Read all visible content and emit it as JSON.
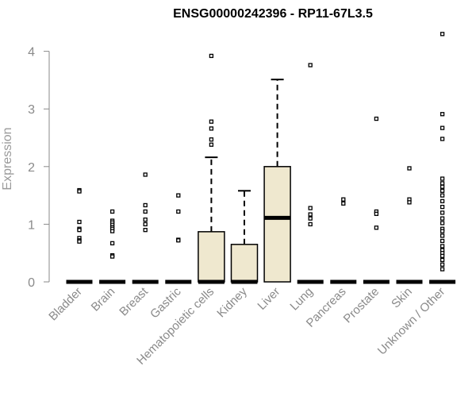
{
  "chart_data": {
    "type": "box",
    "title": "ENSG00000242396 - RP11-67L3.5",
    "xlabel": "",
    "ylabel": "Expression",
    "ylim": [
      0,
      4.3
    ],
    "yticks": [
      0,
      1,
      2,
      3,
      4
    ],
    "grid": false,
    "categories": [
      "Bladder",
      "Brain",
      "Breast",
      "Gastric",
      "Hematopoietic cells",
      "Kidney",
      "Liver",
      "Lung",
      "Pancreas",
      "Prostate",
      "Skin",
      "Unknown / Other"
    ],
    "box_fill": "#efe8cf",
    "boxes": [
      {
        "category": "Bladder",
        "q1": 0,
        "median": 0,
        "q3": 0,
        "whisker_low": 0,
        "whisker_high": 0,
        "outliers": [
          1.59,
          1.57,
          1.04,
          0.92,
          0.9,
          0.76,
          0.72,
          0.7
        ]
      },
      {
        "category": "Brain",
        "q1": 0,
        "median": 0,
        "q3": 0,
        "whisker_low": 0,
        "whisker_high": 0,
        "outliers": [
          1.22,
          1.06,
          1.03,
          0.99,
          0.95,
          0.92,
          0.88,
          0.67,
          0.46,
          0.44
        ]
      },
      {
        "category": "Breast",
        "q1": 0,
        "median": 0,
        "q3": 0,
        "whisker_low": 0,
        "whisker_high": 0,
        "outliers": [
          1.86,
          1.33,
          1.22,
          1.08,
          1.0,
          0.9
        ]
      },
      {
        "category": "Gastric",
        "q1": 0,
        "median": 0,
        "q3": 0,
        "whisker_low": 0,
        "whisker_high": 0,
        "outliers": [
          1.5,
          1.22,
          0.73,
          0.72
        ]
      },
      {
        "category": "Hematopoietic cells",
        "q1": 0,
        "median": 0,
        "q3": 0.87,
        "whisker_low": 0,
        "whisker_high": 2.16,
        "outliers": [
          3.92,
          2.78,
          2.66,
          2.47,
          2.38
        ]
      },
      {
        "category": "Kidney",
        "q1": 0,
        "median": 0,
        "q3": 0.65,
        "whisker_low": 0,
        "whisker_high": 1.58,
        "outliers": []
      },
      {
        "category": "Liver",
        "q1": 0,
        "median": 1.11,
        "q3": 2.0,
        "whisker_low": 0,
        "whisker_high": 3.51,
        "outliers": []
      },
      {
        "category": "Lung",
        "q1": 0,
        "median": 0,
        "q3": 0,
        "whisker_low": 0,
        "whisker_high": 0,
        "outliers": [
          3.76,
          1.28,
          1.17,
          1.1,
          1.0
        ]
      },
      {
        "category": "Pancreas",
        "q1": 0,
        "median": 0,
        "q3": 0,
        "whisker_low": 0,
        "whisker_high": 0,
        "outliers": [
          1.43,
          1.36
        ]
      },
      {
        "category": "Prostate",
        "q1": 0,
        "median": 0,
        "q3": 0,
        "whisker_low": 0,
        "whisker_high": 0,
        "outliers": [
          2.83,
          1.22,
          1.18,
          0.94
        ]
      },
      {
        "category": "Skin",
        "q1": 0,
        "median": 0,
        "q3": 0,
        "whisker_low": 0,
        "whisker_high": 0,
        "outliers": [
          1.97,
          1.43,
          1.38
        ]
      },
      {
        "category": "Unknown / Other",
        "q1": 0,
        "median": 0,
        "q3": 0,
        "whisker_low": 0,
        "whisker_high": 0,
        "outliers": [
          4.3,
          2.91,
          2.48,
          2.67,
          1.79,
          1.71,
          1.65,
          1.58,
          1.5,
          1.4,
          1.3,
          1.2,
          1.1,
          1.02,
          0.92,
          0.88,
          0.8,
          0.71,
          0.62,
          0.55,
          0.5,
          0.45,
          0.38,
          0.3,
          0.22
        ]
      }
    ]
  }
}
